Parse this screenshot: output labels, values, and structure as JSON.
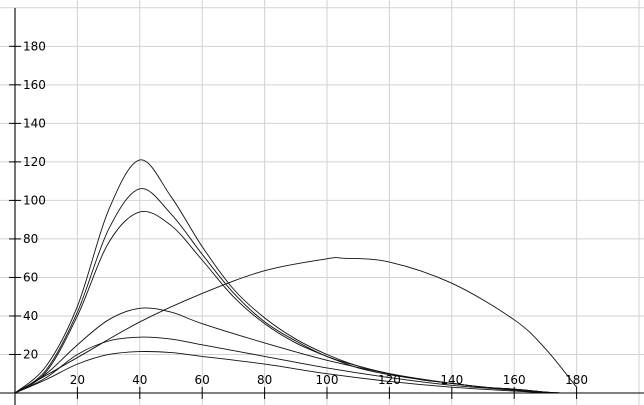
{
  "chart_data": {
    "type": "line",
    "title": "",
    "xlabel": "",
    "ylabel": "",
    "xlim": [
      0,
      200
    ],
    "ylim": [
      0,
      200
    ],
    "x_ticks": [
      "20",
      "40",
      "60",
      "80",
      "100",
      "120",
      "140",
      "160",
      "180"
    ],
    "y_ticks": [
      "20",
      "40",
      "60",
      "80",
      "100",
      "120",
      "140",
      "160",
      "180"
    ],
    "grid": true,
    "legend": "none",
    "series": [
      {
        "x": [
          0,
          10,
          20,
          30,
          40,
          50,
          60,
          70,
          80,
          90,
          100,
          110,
          120,
          130,
          140,
          150,
          160,
          170,
          175
        ],
        "y": [
          0,
          14,
          45,
          95,
          121,
          102,
          76,
          54,
          39,
          28,
          20,
          14,
          10,
          7,
          5,
          3,
          2,
          0.5,
          0
        ]
      },
      {
        "x": [
          0,
          10,
          20,
          30,
          40,
          50,
          60,
          70,
          80,
          90,
          100,
          110,
          120,
          130,
          140,
          150,
          160,
          170,
          175
        ],
        "y": [
          0,
          12,
          42,
          85,
          106,
          93,
          72,
          52,
          37,
          27,
          19,
          14,
          10,
          7,
          5,
          3,
          2,
          0.5,
          0
        ]
      },
      {
        "x": [
          0,
          10,
          20,
          30,
          40,
          50,
          60,
          70,
          80,
          90,
          100,
          110,
          120,
          130,
          140,
          150,
          160,
          170,
          175
        ],
        "y": [
          0,
          11,
          40,
          78,
          94,
          87,
          69,
          50,
          36,
          26,
          19,
          13,
          9.5,
          7,
          5,
          3,
          2,
          0.5,
          0
        ]
      },
      {
        "x": [
          0,
          10,
          20,
          30,
          40,
          50,
          60,
          80,
          100,
          120,
          140,
          160,
          172
        ],
        "y": [
          0,
          10,
          25,
          38,
          44,
          42,
          36,
          26,
          17,
          10,
          5,
          1.5,
          0
        ]
      },
      {
        "x": [
          0,
          10,
          20,
          30,
          40,
          50,
          60,
          80,
          100,
          120,
          140,
          160,
          172
        ],
        "y": [
          0,
          8,
          20,
          27,
          29,
          28,
          25,
          19,
          13,
          8,
          4,
          1.5,
          0
        ]
      },
      {
        "x": [
          0,
          10,
          20,
          30,
          40,
          50,
          60,
          80,
          100,
          120,
          140,
          160,
          172
        ],
        "y": [
          0,
          7,
          15,
          20,
          21.5,
          21,
          19,
          15,
          10,
          6,
          3,
          1,
          0
        ]
      },
      {
        "x": [
          0,
          20,
          40,
          60,
          80,
          100,
          105,
          120,
          140,
          160,
          170,
          180
        ],
        "y": [
          0,
          18.4,
          36.9,
          51.7,
          63.5,
          69.7,
          70,
          68,
          57,
          38,
          23,
          3
        ]
      }
    ]
  }
}
